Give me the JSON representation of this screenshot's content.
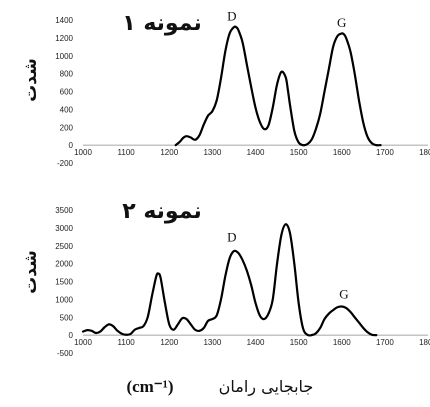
{
  "x_axis_label": "جابجایی رامان",
  "x_axis_unit": "(cm⁻¹)",
  "chart_data": [
    {
      "type": "line",
      "title": "نمونه ۱",
      "ylabel": "شدت",
      "xlim": [
        1000,
        1800
      ],
      "ylim": [
        -200,
        1400
      ],
      "x_ticks": [
        1000,
        1100,
        1200,
        1300,
        1400,
        1500,
        1600,
        1700,
        1800
      ],
      "y_ticks": [
        -200,
        0,
        200,
        400,
        600,
        800,
        1000,
        1200,
        1400
      ],
      "annotations": [
        {
          "text": "D",
          "x": 1345,
          "y": 1330
        },
        {
          "text": "G",
          "x": 1600,
          "y": 1255
        }
      ],
      "x": [
        1215,
        1225,
        1232,
        1240,
        1250,
        1260,
        1270,
        1280,
        1290,
        1300,
        1310,
        1320,
        1330,
        1340,
        1350,
        1355,
        1360,
        1370,
        1380,
        1390,
        1400,
        1410,
        1420,
        1430,
        1440,
        1450,
        1460,
        1470,
        1475,
        1480,
        1490,
        1500,
        1510,
        1520,
        1530,
        1540,
        1550,
        1560,
        1570,
        1580,
        1590,
        1600,
        1605,
        1610,
        1620,
        1630,
        1640,
        1650,
        1660,
        1670,
        1680,
        1690
      ],
      "y": [
        0,
        40,
        80,
        100,
        85,
        60,
        110,
        230,
        330,
        380,
        500,
        750,
        1050,
        1250,
        1320,
        1320,
        1290,
        1150,
        900,
        650,
        420,
        260,
        180,
        220,
        420,
        680,
        820,
        760,
        620,
        450,
        160,
        30,
        0,
        10,
        60,
        180,
        350,
        600,
        850,
        1100,
        1220,
        1250,
        1240,
        1200,
        1050,
        800,
        500,
        250,
        90,
        20,
        0,
        0
      ]
    },
    {
      "type": "line",
      "title": "نمونه ۲",
      "ylabel": "شدت",
      "xlim": [
        1000,
        1800
      ],
      "ylim": [
        -500,
        3500
      ],
      "x_ticks": [
        1000,
        1100,
        1200,
        1300,
        1400,
        1500,
        1600,
        1700,
        1800
      ],
      "y_ticks": [
        -500,
        0,
        500,
        1000,
        1500,
        2000,
        2500,
        3000,
        3500
      ],
      "annotations": [
        {
          "text": "D",
          "x": 1345,
          "y": 2450
        },
        {
          "text": "G",
          "x": 1605,
          "y": 850
        }
      ],
      "x": [
        1000,
        1010,
        1020,
        1030,
        1040,
        1050,
        1060,
        1070,
        1080,
        1090,
        1100,
        1110,
        1120,
        1130,
        1140,
        1150,
        1160,
        1170,
        1175,
        1180,
        1190,
        1200,
        1210,
        1220,
        1230,
        1240,
        1250,
        1260,
        1270,
        1280,
        1290,
        1300,
        1310,
        1320,
        1330,
        1340,
        1350,
        1360,
        1370,
        1380,
        1390,
        1400,
        1410,
        1420,
        1430,
        1440,
        1450,
        1460,
        1470,
        1480,
        1490,
        1500,
        1510,
        1520,
        1530,
        1540,
        1550,
        1560,
        1570,
        1580,
        1590,
        1600,
        1610,
        1620,
        1630,
        1640,
        1650,
        1660,
        1670,
        1680
      ],
      "y": [
        100,
        140,
        120,
        60,
        100,
        220,
        300,
        250,
        120,
        40,
        10,
        30,
        150,
        200,
        250,
        500,
        1100,
        1650,
        1720,
        1600,
        900,
        300,
        150,
        300,
        470,
        450,
        300,
        150,
        120,
        200,
        400,
        450,
        550,
        1000,
        1650,
        2150,
        2350,
        2300,
        2100,
        1800,
        1400,
        900,
        550,
        450,
        600,
        1000,
        2000,
        2800,
        3100,
        2850,
        2000,
        900,
        200,
        10,
        0,
        50,
        200,
        450,
        600,
        700,
        780,
        800,
        760,
        650,
        500,
        350,
        200,
        80,
        10,
        0
      ]
    }
  ]
}
